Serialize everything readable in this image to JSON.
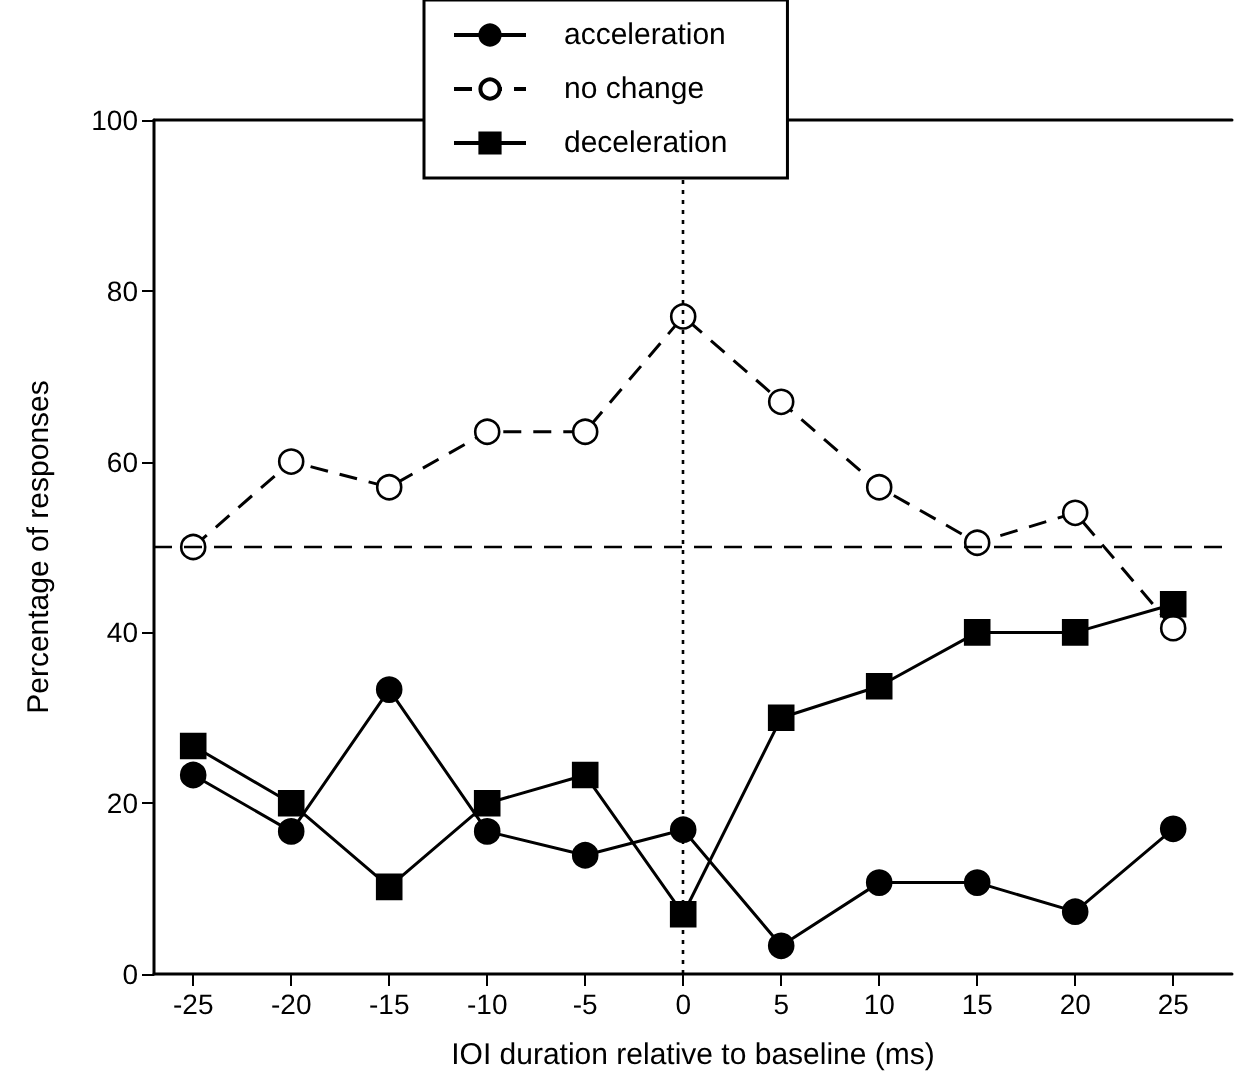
{
  "chart_data": {
    "type": "line",
    "xlabel": "IOI duration relative to baseline (ms)",
    "ylabel": "Percentage of responses",
    "x": [
      -25,
      -20,
      -15,
      -10,
      -5,
      0,
      5,
      10,
      15,
      20,
      25
    ],
    "series": [
      {
        "name": "acceleration",
        "color": "#000000",
        "marker": "circle",
        "line_style": "solid",
        "values": [
          23.3,
          16.7,
          33.3,
          16.7,
          13.9,
          16.9,
          3.3,
          10.7,
          10.7,
          7.3,
          17
        ]
      },
      {
        "name": "no change",
        "color": "#000000",
        "marker": "circle",
        "colors": [
          "#ffffff",
          "#ffffff",
          "#ffffff",
          "#ffffff",
          "#ffffff",
          "#ffffff",
          "#ffffff",
          "#ffffff",
          "#ffffff",
          "#ffffff",
          "#ffffff"
        ],
        "line_style": "dashed",
        "values": [
          50,
          60,
          57,
          63.5,
          63.5,
          77,
          67,
          57,
          50.5,
          54,
          40.5
        ]
      },
      {
        "name": "deceleration",
        "color": "#000000",
        "marker": "square",
        "line_style": "solid",
        "values": [
          26.7,
          20,
          10.2,
          20,
          23.3,
          7,
          30,
          33.7,
          40,
          40,
          43.3
        ]
      }
    ],
    "xlim": [
      -27,
      28
    ],
    "xticks": [
      -25,
      -20,
      -15,
      -10,
      -5,
      0,
      5,
      10,
      15,
      20,
      25
    ],
    "ylim": [
      0,
      100
    ],
    "yticks": [
      0,
      20,
      40,
      60,
      80,
      100
    ],
    "ref_lines": [
      {
        "axis": "y",
        "value": 50,
        "line_style": "dashed",
        "color": "#000000"
      },
      {
        "axis": "x",
        "value": 0,
        "line_style": "dotted",
        "color": "#000000"
      }
    ],
    "grid": false,
    "legend": "top"
  }
}
